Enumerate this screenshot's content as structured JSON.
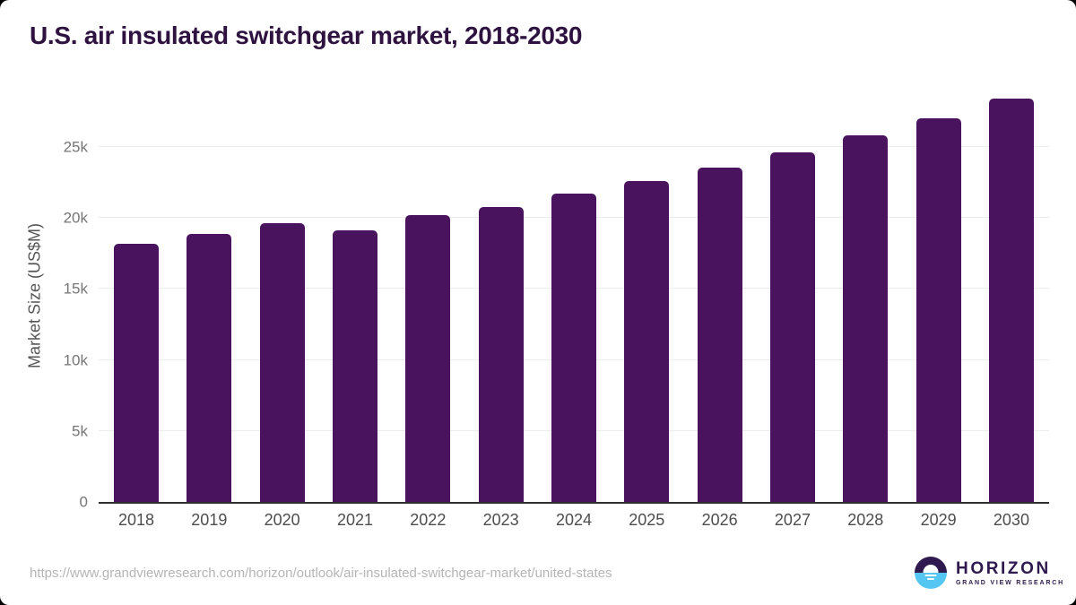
{
  "chart_data": {
    "type": "bar",
    "title": "U.S. air insulated switchgear market, 2018-2030",
    "xlabel": "",
    "ylabel": "Market Size (US$M)",
    "categories": [
      "2018",
      "2019",
      "2020",
      "2021",
      "2022",
      "2023",
      "2024",
      "2025",
      "2026",
      "2027",
      "2028",
      "2029",
      "2030"
    ],
    "values": [
      18200,
      18900,
      19650,
      19100,
      20200,
      20800,
      21700,
      22600,
      23550,
      24650,
      25800,
      27000,
      28400
    ],
    "ylim": [
      0,
      25000
    ],
    "yticks": [
      {
        "label": "0",
        "value": 0
      },
      {
        "label": "5k",
        "value": 5000
      },
      {
        "label": "10k",
        "value": 10000
      },
      {
        "label": "15k",
        "value": 15000
      },
      {
        "label": "20k",
        "value": 20000
      },
      {
        "label": "25k",
        "value": 25000
      }
    ],
    "grid": "horizontal",
    "legend": "none",
    "bar_color": "#49135e"
  },
  "colors": {
    "title_text": "#2e1240",
    "bar": "#49135e",
    "logo_purple": "#2e1a4e",
    "logo_blue": "#55c6f2"
  },
  "footer": {
    "source_url": "https://www.grandviewresearch.com/horizon/outlook/air-insulated-switchgear-market/united-states",
    "logo": {
      "title": "HORIZON",
      "subtitle": "GRAND VIEW RESEARCH",
      "icon": "sun-over-water-icon"
    }
  }
}
